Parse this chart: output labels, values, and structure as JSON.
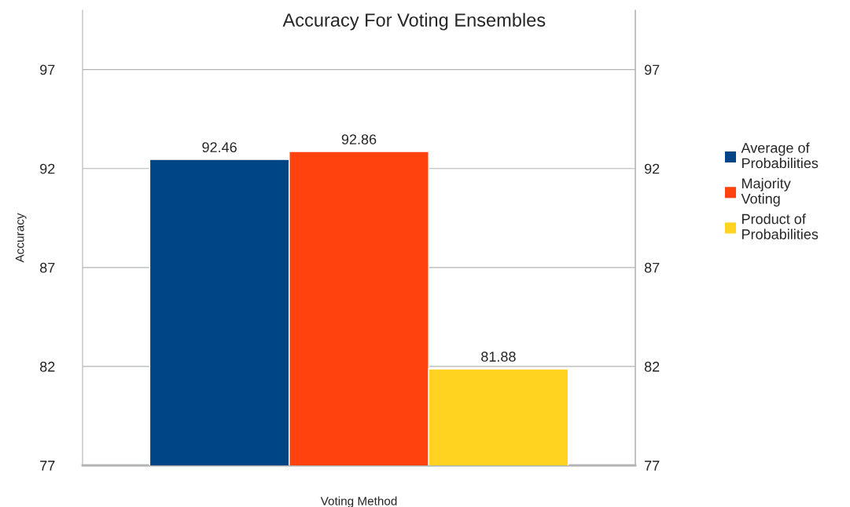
{
  "chart_data": {
    "type": "bar",
    "title": "Accuracy For Voting Ensembles",
    "xlabel": "Voting Method",
    "ylabel": "Accuracy",
    "categories": [
      null
    ],
    "series": [
      {
        "name": "Average of Probabilities",
        "color": "#004586",
        "values": [
          92.46
        ]
      },
      {
        "name": "Majority Voting",
        "color": "#ff420e",
        "values": [
          92.86
        ]
      },
      {
        "name": "Product of Probabilities",
        "color": "#ffd320",
        "values": [
          81.88
        ]
      }
    ],
    "ylim": [
      77,
      100
    ],
    "yticks": [
      77,
      82,
      87,
      92,
      97
    ],
    "y2lim": [
      77,
      100
    ],
    "y2ticks": [
      77,
      82,
      87,
      92,
      97
    ],
    "grid": "y",
    "legend": "right",
    "data_labels": true
  }
}
